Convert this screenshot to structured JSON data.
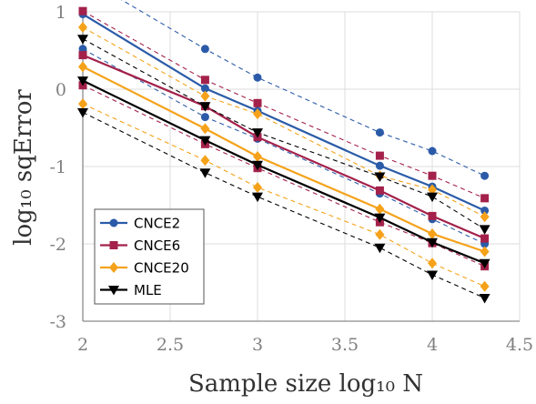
{
  "chart_data": {
    "type": "line",
    "xlabel": "Sample size log₁₀ N",
    "ylabel": "log₁₀ sqError",
    "xlim": [
      2,
      4.5
    ],
    "ylim": [
      -3,
      1
    ],
    "xticks": [
      "2",
      "2.5",
      "3",
      "3.5",
      "4",
      "4.5"
    ],
    "yticks": [
      "1",
      "0",
      "-1",
      "-2",
      "-3"
    ],
    "xtick_values": [
      2,
      2.5,
      3,
      3.5,
      4,
      4.5
    ],
    "ytick_values": [
      1,
      0,
      -1,
      -2,
      -3
    ],
    "x": [
      2,
      2.7,
      3,
      3.7,
      4,
      4.3
    ],
    "grid": true,
    "legend_position": "bottom-left",
    "series": [
      {
        "name": "CNCE2",
        "color": "#2b5ba8",
        "marker": "circle",
        "median": [
          0.97,
          0.01,
          -0.28,
          -0.99,
          -1.26,
          -1.57
        ],
        "upper": [
          1.45,
          0.52,
          0.15,
          -0.56,
          -0.8,
          -1.12
        ],
        "lower": [
          0.52,
          -0.36,
          -0.64,
          -1.35,
          -1.68,
          -2.0
        ]
      },
      {
        "name": "CNCE6",
        "color": "#a3214a",
        "marker": "square",
        "median": [
          0.44,
          -0.22,
          -0.62,
          -1.31,
          -1.64,
          -1.93
        ],
        "upper": [
          1.01,
          0.12,
          -0.18,
          -0.86,
          -1.12,
          -1.41
        ],
        "lower": [
          0.05,
          -0.71,
          -1.02,
          -1.72,
          -1.99,
          -2.29
        ]
      },
      {
        "name": "CNCE20",
        "color": "#f5a21a",
        "marker": "diamond",
        "median": [
          0.29,
          -0.51,
          -0.87,
          -1.55,
          -1.87,
          -2.1
        ],
        "upper": [
          0.8,
          -0.09,
          -0.32,
          -1.12,
          -1.3,
          -1.65
        ],
        "lower": [
          -0.19,
          -0.92,
          -1.27,
          -1.88,
          -2.25,
          -2.55
        ]
      },
      {
        "name": "MLE",
        "color": "#000000",
        "marker": "triangle-down",
        "median": [
          0.11,
          -0.66,
          -0.98,
          -1.66,
          -1.98,
          -2.25
        ],
        "upper": [
          0.65,
          -0.22,
          -0.56,
          -1.13,
          -1.39,
          -1.81
        ],
        "lower": [
          -0.3,
          -1.08,
          -1.39,
          -2.05,
          -2.4,
          -2.7
        ]
      }
    ]
  }
}
